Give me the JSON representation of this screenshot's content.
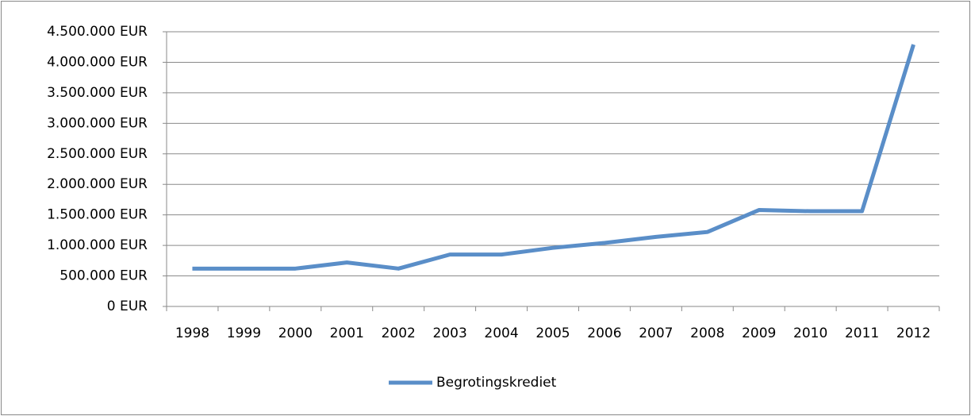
{
  "chart_data": {
    "type": "line",
    "categories": [
      "1998",
      "1999",
      "2000",
      "2001",
      "2002",
      "2003",
      "2004",
      "2005",
      "2006",
      "2007",
      "2008",
      "2009",
      "2010",
      "2011",
      "2012"
    ],
    "series": [
      {
        "name": "Begrotingskrediet",
        "color": "#5a8ec8",
        "values": [
          620000,
          620000,
          620000,
          720000,
          620000,
          850000,
          850000,
          960000,
          1040000,
          1140000,
          1220000,
          1580000,
          1560000,
          1560000,
          4290000
        ]
      }
    ],
    "ylim": [
      0,
      4500000
    ],
    "yticks": [
      {
        "value": 0,
        "label": "0 EUR"
      },
      {
        "value": 500000,
        "label": "500.000 EUR"
      },
      {
        "value": 1000000,
        "label": "1.000.000 EUR"
      },
      {
        "value": 1500000,
        "label": "1.500.000 EUR"
      },
      {
        "value": 2000000,
        "label": "2.000.000 EUR"
      },
      {
        "value": 2500000,
        "label": "2.500.000 EUR"
      },
      {
        "value": 3000000,
        "label": "3.000.000 EUR"
      },
      {
        "value": 3500000,
        "label": "3.500.000 EUR"
      },
      {
        "value": 4000000,
        "label": "4.000.000 EUR"
      },
      {
        "value": 4500000,
        "label": "4.500.000 EUR"
      }
    ],
    "grid": true,
    "legend": "bottom"
  }
}
